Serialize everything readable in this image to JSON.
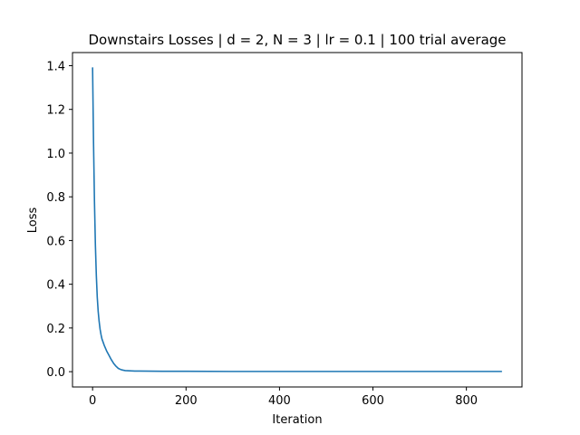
{
  "chart_data": {
    "type": "line",
    "title": "Downstairs Losses | d = 2, N = 3 | lr = 0.1 | 100 trial average",
    "xlabel": "Iteration",
    "ylabel": "Loss",
    "xlim": [
      -43,
      919
    ],
    "ylim": [
      -0.07,
      1.46
    ],
    "xticks": [
      0,
      200,
      400,
      600,
      800
    ],
    "xtick_labels": [
      "0",
      "200",
      "400",
      "600",
      "800"
    ],
    "yticks": [
      0.0,
      0.2,
      0.4,
      0.6,
      0.8,
      1.0,
      1.2,
      1.4
    ],
    "ytick_labels": [
      "0.0",
      "0.2",
      "0.4",
      "0.6",
      "0.8",
      "1.0",
      "1.2",
      "1.4"
    ],
    "grid": false,
    "series": [
      {
        "color": "#1f77b4",
        "x": [
          0,
          2,
          4,
          6,
          8,
          10,
          12,
          14,
          16,
          18,
          20,
          25,
          30,
          35,
          40,
          45,
          50,
          55,
          60,
          65,
          70,
          80,
          90,
          100,
          150,
          200,
          300,
          400,
          500,
          600,
          700,
          800,
          875
        ],
        "y": [
          1.39,
          1.05,
          0.78,
          0.58,
          0.44,
          0.34,
          0.275,
          0.23,
          0.195,
          0.17,
          0.15,
          0.12,
          0.095,
          0.075,
          0.055,
          0.038,
          0.025,
          0.015,
          0.01,
          0.007,
          0.005,
          0.004,
          0.003,
          0.003,
          0.002,
          0.002,
          0.001,
          0.001,
          0.001,
          0.001,
          0.001,
          0.001,
          0.001
        ]
      }
    ]
  }
}
